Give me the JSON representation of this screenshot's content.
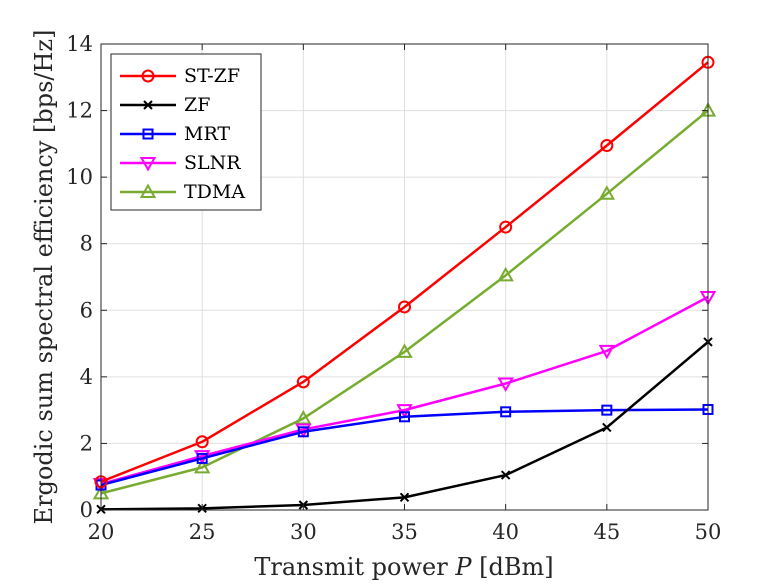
{
  "chart_data": {
    "type": "line",
    "title": "",
    "xlabel_prefix": "Transmit power ",
    "xlabel_var": "P",
    "xlabel_suffix": " [dBm]",
    "ylabel": "Ergodic sum spectral efficiency [bps/Hz]",
    "x": [
      20,
      25,
      30,
      35,
      40,
      45,
      50
    ],
    "xlim": [
      20,
      50
    ],
    "ylim": [
      0,
      14
    ],
    "xticks": [
      "20",
      "25",
      "30",
      "35",
      "40",
      "45",
      "50"
    ],
    "yticks": [
      "0",
      "2",
      "4",
      "6",
      "8",
      "10",
      "12",
      "14"
    ],
    "grid": true,
    "legend_position": "top-left",
    "series": [
      {
        "name": "ST-ZF",
        "color": "#ff0000",
        "marker": "circle",
        "values": [
          0.85,
          2.05,
          3.85,
          6.1,
          8.5,
          10.95,
          13.45
        ]
      },
      {
        "name": "ZF",
        "color": "#000000",
        "marker": "x",
        "values": [
          0.02,
          0.05,
          0.15,
          0.38,
          1.05,
          2.48,
          5.05
        ]
      },
      {
        "name": "MRT",
        "color": "#0000ff",
        "marker": "square",
        "values": [
          0.75,
          1.55,
          2.35,
          2.8,
          2.95,
          3.0,
          3.02
        ]
      },
      {
        "name": "SLNR",
        "color": "#ff00ff",
        "marker": "triangle-down",
        "values": [
          0.78,
          1.62,
          2.42,
          3.0,
          3.8,
          4.78,
          6.4
        ]
      },
      {
        "name": "TDMA",
        "color": "#77ac30",
        "marker": "triangle-up",
        "values": [
          0.5,
          1.28,
          2.75,
          4.75,
          7.05,
          9.5,
          12.0
        ]
      }
    ]
  }
}
